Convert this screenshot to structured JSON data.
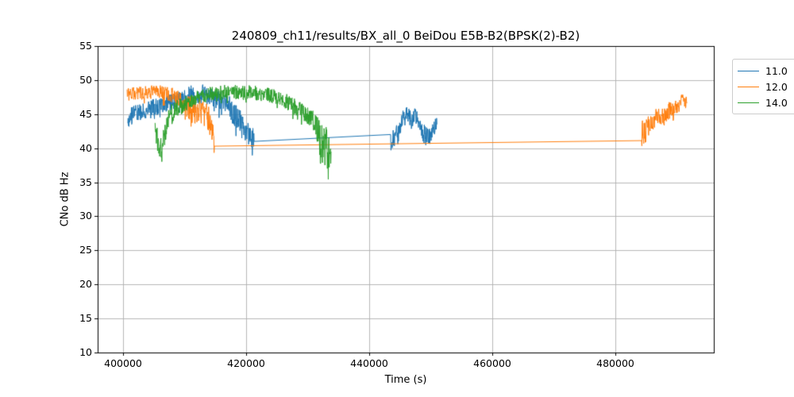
{
  "chart_data": {
    "type": "line",
    "title": "240809_ch11/results/BX_all_0 BeiDou E5B-B2(BPSK(2)-B2)",
    "xlabel": "Time (s)",
    "ylabel": "CNo dB Hz",
    "xlim": [
      395870,
      496000
    ],
    "ylim": [
      10,
      55
    ],
    "xticks": [
      400000,
      420000,
      440000,
      460000,
      480000
    ],
    "yticks": [
      10,
      15,
      20,
      25,
      30,
      35,
      40,
      45,
      50,
      55
    ],
    "grid": true,
    "grid_color": "#b0b0b0",
    "spine_color": "#000000",
    "background": "#ffffff",
    "legend_position": "outside upper right",
    "point_format": [
      "time_s",
      "cno_db_hz_mean",
      "noise_amplitude_db"
    ],
    "series": [
      {
        "name": "11.0",
        "color": "#1f77b4",
        "segments": [
          [
            [
              400770,
              43.5,
              1.3
            ],
            [
              401300,
              44.8,
              1.5
            ],
            [
              402600,
              45.2,
              1.4
            ],
            [
              405200,
              46.0,
              1.4
            ],
            [
              407700,
              46.8,
              1.4
            ],
            [
              409500,
              47.2,
              1.4
            ],
            [
              411000,
              47.8,
              1.8
            ],
            [
              413000,
              47.9,
              1.6
            ],
            [
              414500,
              47.4,
              1.5
            ],
            [
              416800,
              46.8,
              1.6
            ],
            [
              417800,
              45.5,
              2.2
            ],
            [
              419000,
              44.0,
              2.4
            ],
            [
              420200,
              42.5,
              2.4
            ],
            [
              421000,
              42.0,
              2.2
            ],
            [
              421300,
              41.0,
              1.2
            ]
          ],
          [
            [
              443480,
              40.5,
              1.8
            ],
            [
              444100,
              41.8,
              1.8
            ],
            [
              444700,
              42.0,
              1.6
            ],
            [
              445300,
              44.0,
              1.4
            ],
            [
              445900,
              45.2,
              1.2
            ],
            [
              446400,
              45.0,
              1.3
            ],
            [
              446900,
              43.8,
              1.3
            ],
            [
              447400,
              44.8,
              1.2
            ],
            [
              447900,
              44.2,
              1.3
            ],
            [
              448500,
              42.8,
              1.5
            ],
            [
              449100,
              41.8,
              1.7
            ],
            [
              449700,
              41.5,
              1.8
            ],
            [
              450300,
              42.8,
              1.4
            ],
            [
              451000,
              43.5,
              1.2
            ]
          ]
        ]
      },
      {
        "name": "12.0",
        "color": "#ff7f0e",
        "segments": [
          [
            [
              400650,
              47.9,
              1.1
            ],
            [
              403000,
              48.1,
              1.1
            ],
            [
              405500,
              48.3,
              1.1
            ],
            [
              407500,
              48.0,
              1.2
            ],
            [
              409000,
              47.3,
              1.4
            ],
            [
              410300,
              46.2,
              1.8
            ],
            [
              411600,
              45.6,
              2.2
            ],
            [
              412900,
              45.2,
              2.0
            ],
            [
              413800,
              44.6,
              2.2
            ],
            [
              414400,
              43.0,
              2.5
            ],
            [
              414840,
              40.3,
              1.3
            ]
          ],
          [
            [
              484260,
              42.5,
              2.5
            ],
            [
              484800,
              42.0,
              2.2
            ],
            [
              485500,
              43.5,
              1.8
            ],
            [
              486300,
              44.3,
              1.5
            ],
            [
              487100,
              44.6,
              1.5
            ],
            [
              487900,
              44.3,
              1.6
            ],
            [
              488700,
              45.5,
              1.4
            ],
            [
              489500,
              46.2,
              1.3
            ],
            [
              490300,
              46.3,
              1.4
            ],
            [
              491000,
              47.0,
              1.2
            ],
            [
              491615,
              46.6,
              1.0
            ]
          ]
        ]
      },
      {
        "name": "14.0",
        "color": "#2ca02c",
        "segments": [
          [
            [
              405200,
              43.5,
              1.2
            ],
            [
              405500,
              41.5,
              2.2
            ],
            [
              405900,
              39.3,
              2.0
            ],
            [
              406300,
              40.0,
              2.2
            ],
            [
              406800,
              42.5,
              2.0
            ],
            [
              407600,
              44.8,
              1.6
            ],
            [
              408800,
              45.8,
              1.5
            ],
            [
              410300,
              46.8,
              1.4
            ],
            [
              412000,
              47.5,
              1.3
            ],
            [
              414000,
              47.9,
              1.2
            ],
            [
              416500,
              48.2,
              1.2
            ],
            [
              419000,
              48.3,
              1.2
            ],
            [
              421500,
              48.1,
              1.2
            ],
            [
              423500,
              47.9,
              1.2
            ],
            [
              425500,
              47.4,
              1.2
            ],
            [
              427000,
              46.6,
              1.3
            ],
            [
              428500,
              45.8,
              1.3
            ],
            [
              430000,
              44.8,
              1.4
            ],
            [
              431000,
              44.0,
              1.6
            ],
            [
              431600,
              42.5,
              2.5
            ],
            [
              432100,
              40.5,
              3.5
            ],
            [
              432700,
              40.8,
              3.8
            ],
            [
              433200,
              39.8,
              3.5
            ],
            [
              433700,
              38.8,
              2.6
            ],
            [
              433800,
              39.5,
              1.5
            ]
          ]
        ]
      }
    ]
  }
}
